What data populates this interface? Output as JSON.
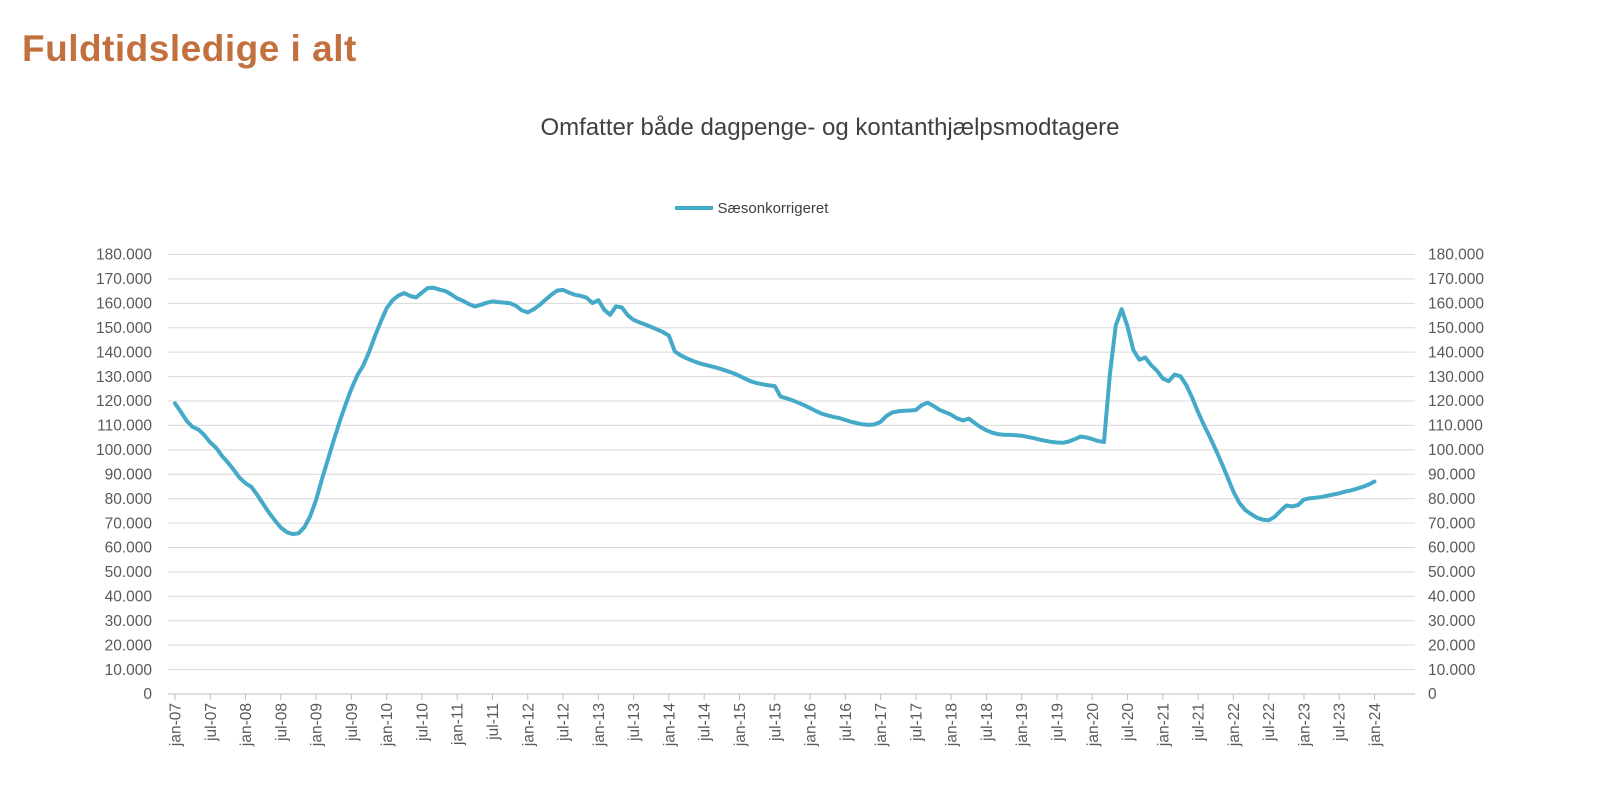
{
  "page": {
    "title": "Fuldtidsledige i alt"
  },
  "chart": {
    "subtitle": "Omfatter både dagpenge- og kontanthjælpsmodtagere",
    "legend": {
      "label": "Sæsonkorrigeret"
    },
    "colors": {
      "title_text": "#C2703D",
      "subtitle_text": "#404040",
      "legend_text": "#3F3F3F",
      "axis_text": "#595959",
      "gridline": "#D9D9D9",
      "axis_line": "#BFBFBF",
      "series_line": "#45A9C8",
      "background": "#FFFFFF"
    }
  },
  "chart_data": {
    "type": "line",
    "title": "Fuldtidsledige i alt",
    "subtitle": "Omfatter både dagpenge- og kontanthjælpsmodtagere",
    "legend_position": "top-center",
    "grid": "horizontal",
    "unit": "persons (full-time unemployed, Denmark)",
    "frequency": "monthly",
    "x_start": "jan-07",
    "x_end": "jan-24",
    "x_axis": {
      "tick_every_n_months": 6,
      "tick_labels": [
        "jan-07",
        "jul-07",
        "jan-08",
        "jul-08",
        "jan-09",
        "jul-09",
        "jan-10",
        "jul-10",
        "jan-11",
        "jul-11",
        "jan-12",
        "jul-12",
        "jan-13",
        "jul-13",
        "jan-14",
        "jul-14",
        "jan-15",
        "jul-15",
        "jan-16",
        "jul-16",
        "jan-17",
        "jul-17",
        "jan-18",
        "jul-18",
        "jan-19",
        "jul-19",
        "jan-20",
        "jul-20",
        "jan-21",
        "jul-21",
        "jan-22",
        "jul-22",
        "jan-23",
        "jul-23",
        "jan-24"
      ]
    },
    "y_axis": {
      "min": 0,
      "max": 180000,
      "step": 10000,
      "sides": "both",
      "tick_labels": [
        "0",
        "10.000",
        "20.000",
        "30.000",
        "40.000",
        "50.000",
        "60.000",
        "70.000",
        "80.000",
        "90.000",
        "100.000",
        "110.000",
        "120.000",
        "130.000",
        "140.000",
        "150.000",
        "160.000",
        "170.000",
        "180.000"
      ]
    },
    "series": [
      {
        "name": "Sæsonkorrigeret",
        "color": "#45A9C8",
        "values": [
          119000,
          115500,
          111800,
          109400,
          108300,
          106000,
          103000,
          100800,
          97500,
          94800,
          91800,
          88500,
          86300,
          84800,
          81500,
          77800,
          74200,
          71000,
          68200,
          66300,
          65500,
          65800,
          68300,
          72800,
          79500,
          88000,
          96000,
          104000,
          111500,
          118500,
          125000,
          130500,
          134500,
          140000,
          146500,
          152500,
          158000,
          161300,
          163200,
          164200,
          163000,
          162400,
          164400,
          166300,
          166400,
          165600,
          165000,
          163600,
          162000,
          161000,
          159700,
          158700,
          159400,
          160200,
          160800,
          160500,
          160300,
          160000,
          159000,
          157100,
          156300,
          157600,
          159300,
          161400,
          163500,
          165200,
          165500,
          164400,
          163500,
          163100,
          162300,
          160100,
          161300,
          157400,
          155300,
          158800,
          158300,
          155100,
          153200,
          152200,
          151300,
          150300,
          149300,
          148200,
          146800,
          140300,
          138700,
          137500,
          136500,
          135600,
          134900,
          134300,
          133700,
          133000,
          132200,
          131300,
          130300,
          129100,
          128000,
          127300,
          126800,
          126400,
          126100,
          121800,
          121100,
          120300,
          119300,
          118300,
          117100,
          115900,
          114800,
          114100,
          113500,
          113000,
          112200,
          111500,
          110900,
          110400,
          110200,
          110400,
          111500,
          113900,
          115300,
          115800,
          116000,
          116100,
          116300,
          118300,
          119300,
          118000,
          116400,
          115400,
          114400,
          112900,
          112000,
          112800,
          111000,
          109300,
          108000,
          107000,
          106400,
          106200,
          106100,
          106000,
          105800,
          105300,
          104800,
          104200,
          103700,
          103300,
          103000,
          102900,
          103400,
          104300,
          105400,
          105100,
          104400,
          103600,
          103200,
          131000,
          151000,
          157600,
          150500,
          140800,
          136900,
          137800,
          134700,
          132400,
          129200,
          128100,
          130800,
          130100,
          126500,
          121300,
          115400,
          110100,
          105200,
          100100,
          94600,
          88800,
          82900,
          78300,
          75400,
          73700,
          72200,
          71400,
          71200,
          72500,
          74900,
          77200,
          76800,
          77400,
          79600,
          80200,
          80400,
          80700,
          81200,
          81700,
          82200,
          82900,
          83400,
          84100,
          84800,
          85800,
          87000
        ]
      }
    ]
  }
}
